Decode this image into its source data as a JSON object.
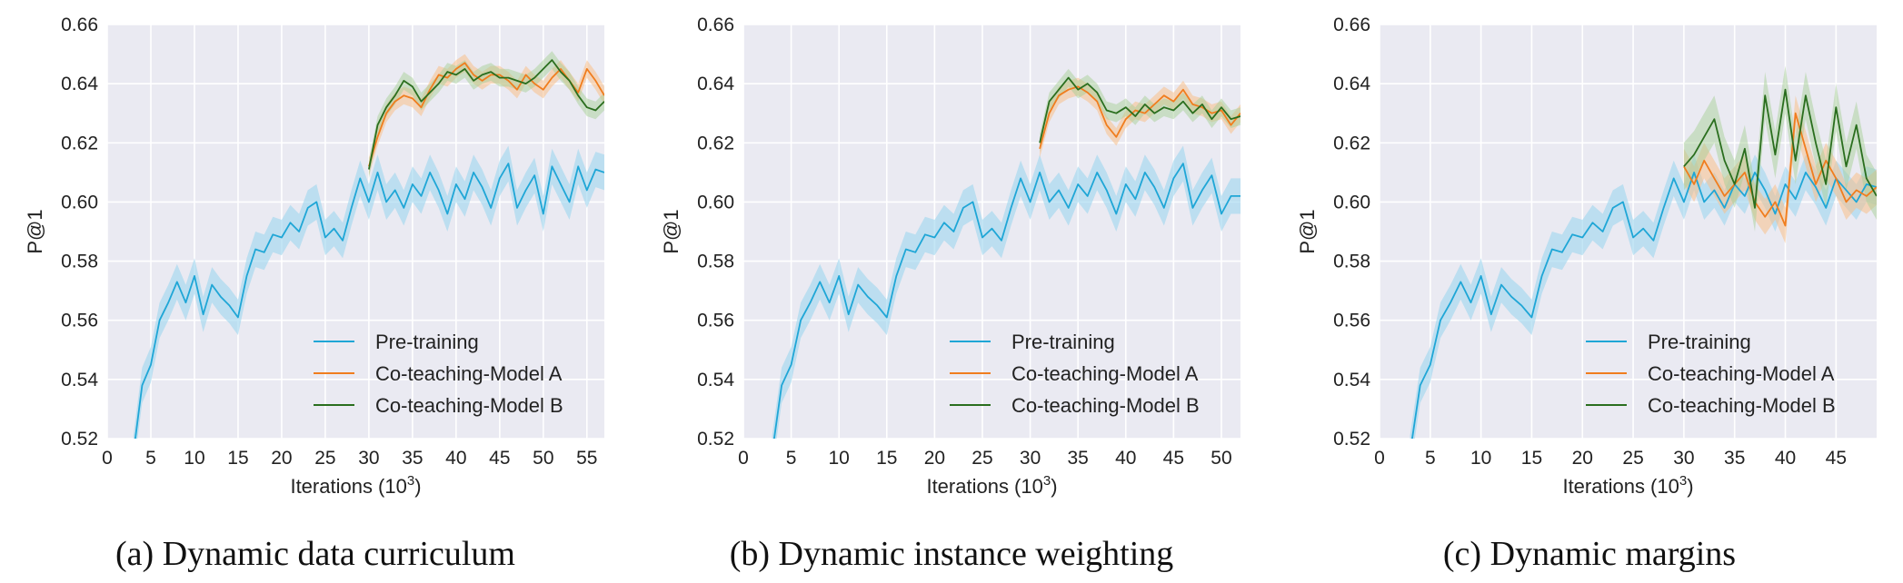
{
  "colors": {
    "background": "#eaeaf2",
    "grid": "#ffffff",
    "pretraining": "#1fa6d6",
    "pretraining_band": "#9dd6ee",
    "model_a": "#f07d1e",
    "model_a_band": "#f8c08a",
    "model_b": "#2a6e1e",
    "model_b_band": "#a8cf98"
  },
  "chart_data": [
    {
      "type": "line",
      "caption": "(a)  Dynamic data curriculum",
      "xlabel": "Iterations (10",
      "xlabel_sup": "3",
      "xlabel_end": ")",
      "ylabel": "P@1",
      "xlim": [
        0,
        57
      ],
      "ylim": [
        0.52,
        0.66
      ],
      "xticks": [
        "0",
        "5",
        "10",
        "15",
        "20",
        "25",
        "30",
        "35",
        "40",
        "45",
        "50",
        "55"
      ],
      "yticks": [
        "0.52",
        "0.54",
        "0.56",
        "0.58",
        "0.60",
        "0.62",
        "0.64",
        "0.66"
      ],
      "grid": true,
      "legend_position": "lower-right",
      "series": [
        {
          "name": "Pre-training",
          "band": 0.006,
          "x": [
            3,
            4,
            5,
            6,
            7,
            8,
            9,
            10,
            11,
            12,
            13,
            14,
            15,
            16,
            17,
            18,
            19,
            20,
            21,
            22,
            23,
            24,
            25,
            26,
            27,
            28,
            29,
            30,
            31,
            32,
            33,
            34,
            35,
            36,
            37,
            38,
            39,
            40,
            41,
            42,
            43,
            44,
            45,
            46,
            47,
            48,
            49,
            50,
            51,
            52,
            53,
            54,
            55,
            56,
            57
          ],
          "y": [
            0.515,
            0.538,
            0.545,
            0.56,
            0.566,
            0.573,
            0.566,
            0.575,
            0.562,
            0.572,
            0.568,
            0.565,
            0.561,
            0.575,
            0.584,
            0.583,
            0.589,
            0.588,
            0.593,
            0.59,
            0.598,
            0.6,
            0.588,
            0.591,
            0.587,
            0.598,
            0.608,
            0.6,
            0.61,
            0.6,
            0.604,
            0.598,
            0.606,
            0.602,
            0.61,
            0.604,
            0.596,
            0.606,
            0.601,
            0.61,
            0.605,
            0.598,
            0.608,
            0.613,
            0.598,
            0.604,
            0.609,
            0.596,
            0.612,
            0.606,
            0.6,
            0.612,
            0.604,
            0.611,
            0.61
          ]
        },
        {
          "name": "Co-teaching-Model A",
          "band": 0.003,
          "x": [
            30,
            31,
            32,
            33,
            34,
            35,
            36,
            37,
            38,
            39,
            40,
            41,
            42,
            43,
            44,
            45,
            46,
            47,
            48,
            49,
            50,
            51,
            52,
            53,
            54,
            55,
            56,
            57
          ],
          "y": [
            0.612,
            0.622,
            0.63,
            0.634,
            0.636,
            0.635,
            0.632,
            0.638,
            0.643,
            0.642,
            0.645,
            0.647,
            0.643,
            0.641,
            0.643,
            0.643,
            0.641,
            0.638,
            0.643,
            0.64,
            0.638,
            0.642,
            0.645,
            0.641,
            0.637,
            0.645,
            0.641,
            0.636
          ]
        },
        {
          "name": "Co-teaching-Model B",
          "band": 0.003,
          "x": [
            30,
            31,
            32,
            33,
            34,
            35,
            36,
            37,
            38,
            39,
            40,
            41,
            42,
            43,
            44,
            45,
            46,
            47,
            48,
            49,
            50,
            51,
            52,
            53,
            54,
            55,
            56,
            57
          ],
          "y": [
            0.611,
            0.626,
            0.632,
            0.636,
            0.641,
            0.639,
            0.634,
            0.637,
            0.64,
            0.644,
            0.643,
            0.645,
            0.641,
            0.643,
            0.644,
            0.642,
            0.642,
            0.641,
            0.64,
            0.642,
            0.645,
            0.648,
            0.644,
            0.641,
            0.636,
            0.632,
            0.631,
            0.634
          ]
        }
      ]
    },
    {
      "type": "line",
      "caption": "(b)  Dynamic instance weighting",
      "xlabel": "Iterations (10",
      "xlabel_sup": "3",
      "xlabel_end": ")",
      "ylabel": "P@1",
      "xlim": [
        0,
        52
      ],
      "ylim": [
        0.52,
        0.66
      ],
      "xticks": [
        "0",
        "5",
        "10",
        "15",
        "20",
        "25",
        "30",
        "35",
        "40",
        "45",
        "50"
      ],
      "yticks": [
        "0.52",
        "0.54",
        "0.56",
        "0.58",
        "0.60",
        "0.62",
        "0.64",
        "0.66"
      ],
      "grid": true,
      "legend_position": "lower-right",
      "series": [
        {
          "name": "Pre-training",
          "band": 0.006,
          "x": [
            3,
            4,
            5,
            6,
            7,
            8,
            9,
            10,
            11,
            12,
            13,
            14,
            15,
            16,
            17,
            18,
            19,
            20,
            21,
            22,
            23,
            24,
            25,
            26,
            27,
            28,
            29,
            30,
            31,
            32,
            33,
            34,
            35,
            36,
            37,
            38,
            39,
            40,
            41,
            42,
            43,
            44,
            45,
            46,
            47,
            48,
            49,
            50,
            51,
            52
          ],
          "y": [
            0.515,
            0.538,
            0.545,
            0.56,
            0.566,
            0.573,
            0.566,
            0.575,
            0.562,
            0.572,
            0.568,
            0.565,
            0.561,
            0.575,
            0.584,
            0.583,
            0.589,
            0.588,
            0.593,
            0.59,
            0.598,
            0.6,
            0.588,
            0.591,
            0.587,
            0.598,
            0.608,
            0.6,
            0.61,
            0.6,
            0.604,
            0.598,
            0.606,
            0.602,
            0.61,
            0.604,
            0.596,
            0.606,
            0.601,
            0.61,
            0.605,
            0.598,
            0.608,
            0.613,
            0.598,
            0.604,
            0.609,
            0.596,
            0.602,
            0.602
          ]
        },
        {
          "name": "Co-teaching-Model A",
          "band": 0.003,
          "x": [
            31,
            32,
            33,
            34,
            35,
            36,
            37,
            38,
            39,
            40,
            41,
            42,
            43,
            44,
            45,
            46,
            47,
            48,
            49,
            50,
            51,
            52
          ],
          "y": [
            0.618,
            0.63,
            0.636,
            0.638,
            0.639,
            0.637,
            0.634,
            0.626,
            0.622,
            0.628,
            0.631,
            0.63,
            0.633,
            0.636,
            0.634,
            0.638,
            0.633,
            0.632,
            0.63,
            0.631,
            0.626,
            0.63
          ]
        },
        {
          "name": "Co-teaching-Model B",
          "band": 0.003,
          "x": [
            31,
            32,
            33,
            34,
            35,
            36,
            37,
            38,
            39,
            40,
            41,
            42,
            43,
            44,
            45,
            46,
            47,
            48,
            49,
            50,
            51,
            52
          ],
          "y": [
            0.62,
            0.634,
            0.638,
            0.642,
            0.638,
            0.64,
            0.637,
            0.631,
            0.63,
            0.632,
            0.629,
            0.633,
            0.63,
            0.632,
            0.631,
            0.634,
            0.63,
            0.633,
            0.628,
            0.632,
            0.628,
            0.629
          ]
        }
      ]
    },
    {
      "type": "line",
      "caption": "(c)  Dynamic margins",
      "xlabel": "Iterations (10",
      "xlabel_sup": "3",
      "xlabel_end": ")",
      "ylabel": "P@1",
      "xlim": [
        0,
        49
      ],
      "ylim": [
        0.52,
        0.66
      ],
      "xticks": [
        "0",
        "5",
        "10",
        "15",
        "20",
        "25",
        "30",
        "35",
        "40",
        "45"
      ],
      "yticks": [
        "0.52",
        "0.54",
        "0.56",
        "0.58",
        "0.60",
        "0.62",
        "0.64",
        "0.66"
      ],
      "grid": true,
      "legend_position": "lower-right",
      "series": [
        {
          "name": "Pre-training",
          "band": 0.006,
          "x": [
            3,
            4,
            5,
            6,
            7,
            8,
            9,
            10,
            11,
            12,
            13,
            14,
            15,
            16,
            17,
            18,
            19,
            20,
            21,
            22,
            23,
            24,
            25,
            26,
            27,
            28,
            29,
            30,
            31,
            32,
            33,
            34,
            35,
            36,
            37,
            38,
            39,
            40,
            41,
            42,
            43,
            44,
            45,
            46,
            47,
            48,
            49
          ],
          "y": [
            0.515,
            0.538,
            0.545,
            0.56,
            0.566,
            0.573,
            0.566,
            0.575,
            0.562,
            0.572,
            0.568,
            0.565,
            0.561,
            0.575,
            0.584,
            0.583,
            0.589,
            0.588,
            0.593,
            0.59,
            0.598,
            0.6,
            0.588,
            0.591,
            0.587,
            0.598,
            0.608,
            0.6,
            0.61,
            0.6,
            0.604,
            0.598,
            0.606,
            0.602,
            0.61,
            0.604,
            0.596,
            0.606,
            0.601,
            0.61,
            0.605,
            0.598,
            0.608,
            0.604,
            0.6,
            0.606,
            0.605
          ]
        },
        {
          "name": "Co-teaching-Model A",
          "band": 0.006,
          "x": [
            30,
            31,
            32,
            33,
            34,
            35,
            36,
            37,
            38,
            39,
            40,
            41,
            42,
            43,
            44,
            45,
            46,
            47,
            48,
            49
          ],
          "y": [
            0.612,
            0.606,
            0.614,
            0.608,
            0.602,
            0.606,
            0.61,
            0.6,
            0.595,
            0.6,
            0.592,
            0.63,
            0.618,
            0.606,
            0.614,
            0.608,
            0.6,
            0.604,
            0.602,
            0.605
          ]
        },
        {
          "name": "Co-teaching-Model B",
          "band": 0.008,
          "x": [
            30,
            31,
            32,
            33,
            34,
            35,
            36,
            37,
            38,
            39,
            40,
            41,
            42,
            43,
            44,
            45,
            46,
            47,
            48,
            49
          ],
          "y": [
            0.612,
            0.616,
            0.622,
            0.628,
            0.614,
            0.606,
            0.618,
            0.598,
            0.636,
            0.616,
            0.638,
            0.614,
            0.636,
            0.62,
            0.606,
            0.632,
            0.612,
            0.626,
            0.608,
            0.602
          ]
        }
      ]
    }
  ]
}
